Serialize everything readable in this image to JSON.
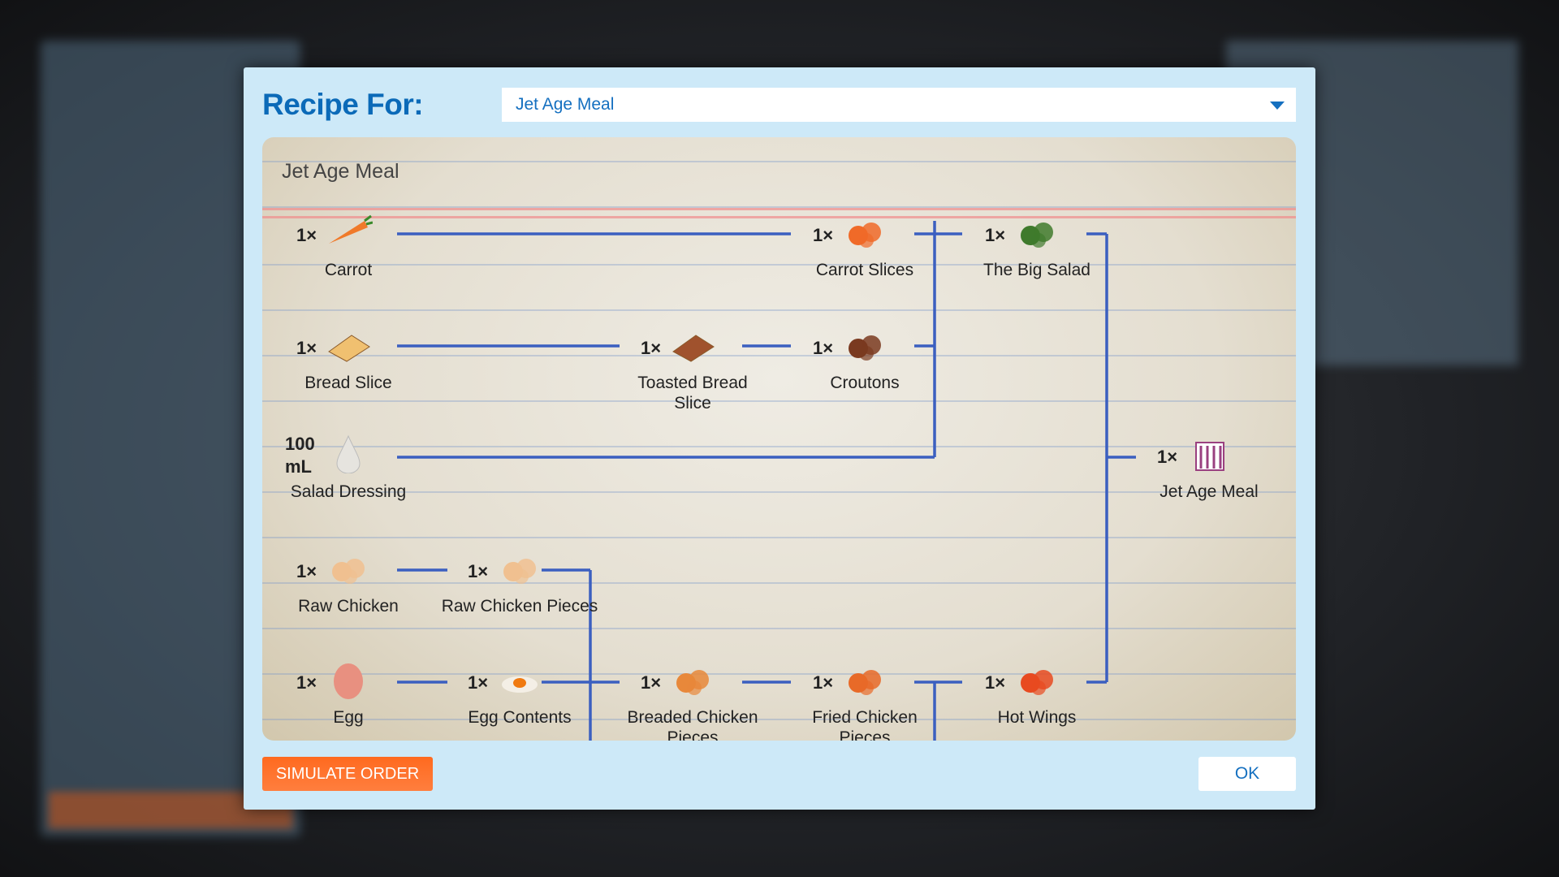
{
  "dialog": {
    "title": "Recipe For:",
    "selected_recipe": "Jet Age Meal",
    "paper_title": "Jet Age Meal",
    "simulate_label": "SIMULATE ORDER",
    "ok_label": "OK",
    "line_color": "#3b5fc0",
    "accent": "#0b6ab8",
    "button_color": "#ff6a1f"
  },
  "nodes": [
    {
      "id": "carrot",
      "qty": "1×",
      "label": "Carrot",
      "icon": "carrot-icon",
      "col": 0,
      "row": 0,
      "color": "#f07a2a"
    },
    {
      "id": "carrot-slices",
      "qty": "1×",
      "label": "Carrot Slices",
      "icon": "carrot-slices-icon",
      "col": 3,
      "row": 0,
      "color": "#f06a28"
    },
    {
      "id": "big-salad",
      "qty": "1×",
      "label": "The Big Salad",
      "icon": "salad-icon",
      "col": 4,
      "row": 0,
      "color": "#3f7a2c"
    },
    {
      "id": "bread-slice",
      "qty": "1×",
      "label": "Bread Slice",
      "icon": "bread-icon",
      "col": 0,
      "row": 1,
      "color": "#f0c070"
    },
    {
      "id": "toasted-bread",
      "qty": "1×",
      "label": "Toasted Bread Slice",
      "icon": "toast-icon",
      "col": 2,
      "row": 1,
      "color": "#a0522d"
    },
    {
      "id": "croutons",
      "qty": "1×",
      "label": "Croutons",
      "icon": "croutons-icon",
      "col": 3,
      "row": 1,
      "color": "#7a3a20"
    },
    {
      "id": "salad-dressing",
      "qty": "100 mL",
      "label": "Salad Dressing",
      "icon": "droplet-icon",
      "col": 0,
      "row": 2,
      "color": "#e6e4df"
    },
    {
      "id": "jet-age-meal",
      "qty": "1×",
      "label": "Jet Age Meal",
      "icon": "meal-box-icon",
      "col": 5,
      "row": 2,
      "color": "#9a4080"
    },
    {
      "id": "raw-chicken",
      "qty": "1×",
      "label": "Raw Chicken",
      "icon": "chicken-icon",
      "col": 0,
      "row": 3,
      "color": "#f0c090"
    },
    {
      "id": "raw-chicken-pieces",
      "qty": "1×",
      "label": "Raw Chicken Pieces",
      "icon": "chicken-pieces-icon",
      "col": 1,
      "row": 3,
      "color": "#f0c090"
    },
    {
      "id": "egg",
      "qty": "1×",
      "label": "Egg",
      "icon": "egg-icon",
      "col": 0,
      "row": 4,
      "color": "#e89080"
    },
    {
      "id": "egg-contents",
      "qty": "1×",
      "label": "Egg Contents",
      "icon": "egg-yolk-icon",
      "col": 1,
      "row": 4,
      "color": "#f07a10"
    },
    {
      "id": "breaded-chicken",
      "qty": "1×",
      "label": "Breaded Chicken Pieces",
      "icon": "breaded-chicken-icon",
      "col": 2,
      "row": 4,
      "color": "#e8883a"
    },
    {
      "id": "fried-chicken",
      "qty": "1×",
      "label": "Fried Chicken Pieces",
      "icon": "fried-chicken-icon",
      "col": 3,
      "row": 4,
      "color": "#e86a28"
    },
    {
      "id": "hot-wings",
      "qty": "1×",
      "label": "Hot Wings",
      "icon": "hot-wings-icon",
      "col": 4,
      "row": 4,
      "color": "#e84a20"
    }
  ]
}
